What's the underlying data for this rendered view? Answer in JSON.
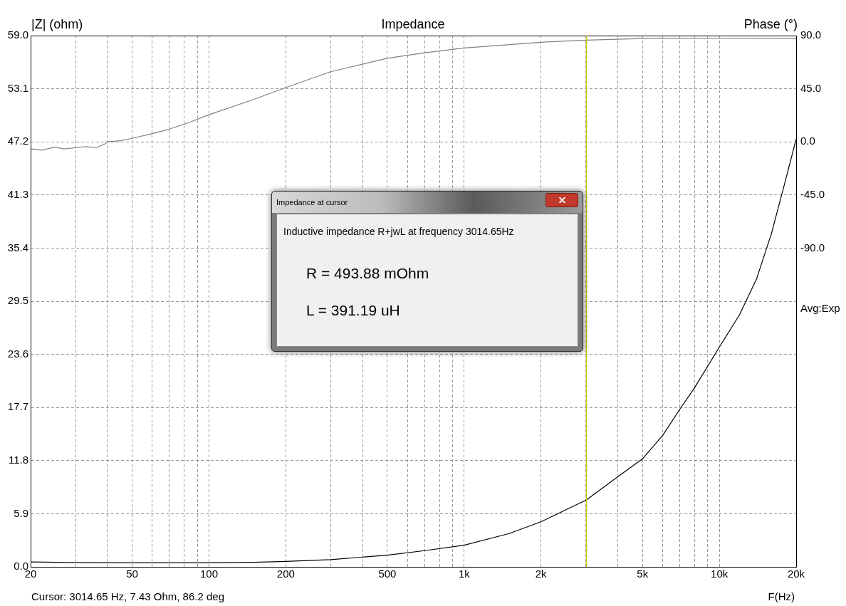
{
  "chart_data": {
    "type": "line",
    "title": "Impedance",
    "ylabel": "|Z| (ohm)",
    "y2label": "Phase (°)",
    "xlabel": "F(Hz)",
    "log": "x",
    "grid": true,
    "marker": "none",
    "line_style": "solid",
    "xlim": [
      20,
      20000
    ],
    "xticks": [
      20,
      {
        "value": 30,
        "label": null
      },
      {
        "value": 40,
        "label": null
      },
      50,
      {
        "value": 60,
        "label": null
      },
      {
        "value": 70,
        "label": null
      },
      {
        "value": 80,
        "label": null
      },
      {
        "value": 90,
        "label": null
      },
      100,
      200,
      {
        "value": 300,
        "label": null
      },
      {
        "value": 400,
        "label": null
      },
      500,
      {
        "value": 600,
        "label": null
      },
      {
        "value": 700,
        "label": null
      },
      {
        "value": 800,
        "label": null
      },
      {
        "value": 900,
        "label": null
      },
      {
        "value": 1000,
        "label": "1k"
      },
      {
        "value": 2000,
        "label": "2k"
      },
      {
        "value": 3000,
        "label": null
      },
      {
        "value": 4000,
        "label": null
      },
      {
        "value": 5000,
        "label": "5k"
      },
      {
        "value": 6000,
        "label": null
      },
      {
        "value": 7000,
        "label": null
      },
      {
        "value": 8000,
        "label": null
      },
      {
        "value": 9000,
        "label": null
      },
      {
        "value": 10000,
        "label": "10k"
      },
      {
        "value": 20000,
        "label": "20k"
      }
    ],
    "ylim": [
      0,
      59
    ],
    "yticks": [
      {
        "value": 0,
        "label": "0.0"
      },
      5.9,
      11.8,
      17.7,
      23.6,
      29.5,
      35.4,
      41.3,
      47.2,
      53.1,
      {
        "value": 59,
        "label": "59.0"
      }
    ],
    "y2lim": [
      -360,
      90
    ],
    "y2ticks": [
      {
        "value": 90,
        "label": "90.0"
      },
      {
        "value": 45,
        "label": "45.0"
      },
      {
        "value": 0,
        "label": "0.0"
      },
      {
        "value": -45,
        "label": "-45.0"
      },
      {
        "value": -90,
        "label": "-90.0"
      }
    ],
    "series": [
      {
        "color": "#000000",
        "axis": "y",
        "x": [
          20,
          25,
          30,
          50,
          100,
          150,
          200,
          300,
          500,
          700,
          1000,
          1500,
          2000,
          3014.65,
          4000,
          5000,
          6000,
          7000,
          8000,
          10000,
          12000,
          14000,
          16000,
          18000,
          20000
        ],
        "values": [
          0.55,
          0.5,
          0.47,
          0.45,
          0.45,
          0.5,
          0.6,
          0.8,
          1.3,
          1.8,
          2.4,
          3.7,
          5.0,
          7.43,
          10.0,
          12.0,
          14.6,
          17.5,
          19.9,
          24.4,
          28.0,
          32.0,
          37.0,
          42.5,
          47.5
        ]
      },
      {
        "color": "#808080",
        "axis": "y2",
        "x": [
          20,
          22,
          25,
          27,
          30,
          33,
          36,
          39,
          40,
          45,
          50,
          60,
          70,
          85,
          100,
          150,
          200,
          300,
          500,
          700,
          1000,
          2000,
          3014.65,
          5000,
          10000,
          20000
        ],
        "values": [
          -5.8,
          -7,
          -4.5,
          -6,
          -5,
          -4,
          -5,
          -2,
          0,
          1,
          3,
          7,
          10.8,
          17,
          23,
          36,
          46,
          59.4,
          70.8,
          75.5,
          79.5,
          84.4,
          86.2,
          87.5,
          87.6,
          87.5
        ]
      }
    ],
    "ref_lines": [
      {
        "axis": "x",
        "value": 3014.65,
        "color": "#c8c800"
      }
    ],
    "annotations": [
      "Avg:Exp",
      "Cursor: 3014.65 Hz, 7.43 Ohm, 86.2 deg",
      "Impedance at cursor",
      "Inductive impedance R+jwL at frequency 3014.65Hz",
      "R = 493.88 mOhm",
      "L = 391.19 uH"
    ]
  }
}
